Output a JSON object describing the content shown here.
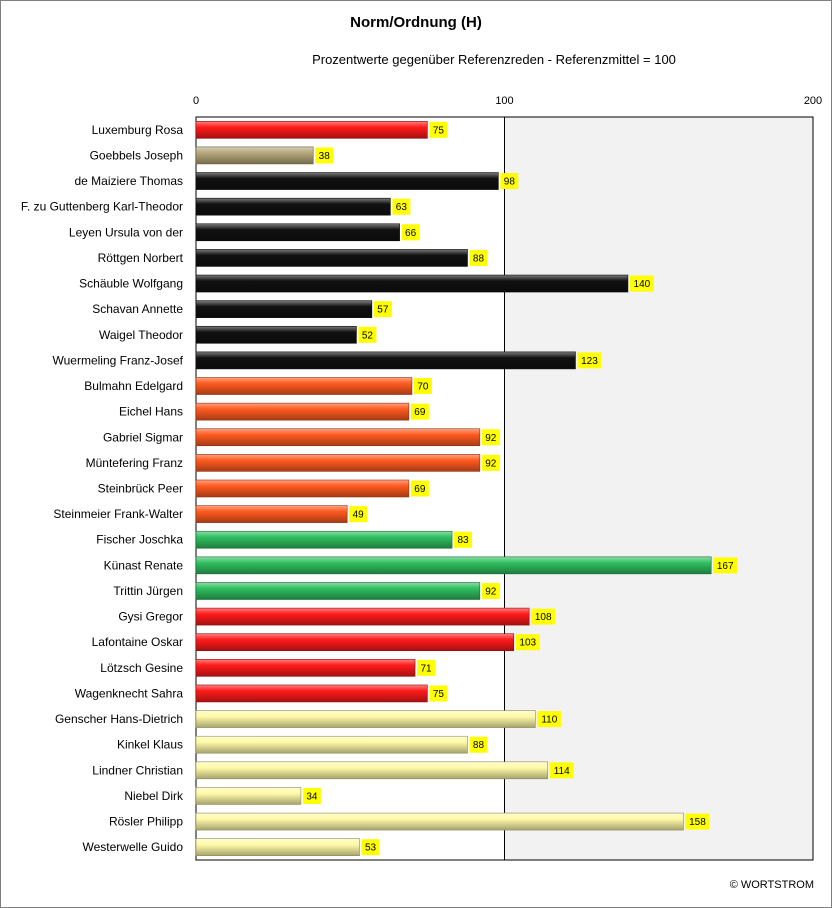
{
  "chart_data": {
    "type": "bar",
    "orientation": "horizontal",
    "title": "Norm/Ordnung (H)",
    "subtitle": "Prozentwerte  gegenüber Referenzreden - Referenzmittel = 100",
    "xlim": [
      0,
      200
    ],
    "xticks": [
      "0",
      "100",
      "200"
    ],
    "categories": [
      "Luxemburg Rosa",
      "Goebbels Joseph",
      "de Maiziere Thomas",
      "F. zu Guttenberg Karl-Theodor",
      "Leyen Ursula von der",
      "Röttgen Norbert",
      "Schäuble Wolfgang",
      "Schavan Annette",
      "Waigel Theodor",
      "Wuermeling Franz-Josef",
      "Bulmahn Edelgard",
      "Eichel Hans",
      "Gabriel Sigmar",
      "Müntefering Franz",
      "Steinbrück Peer",
      "Steinmeier Frank-Walter",
      "Fischer Joschka",
      "Künast Renate",
      "Trittin Jürgen",
      "Gysi Gregor",
      "Lafontaine Oskar",
      "Lötzsch Gesine",
      "Wagenknecht Sahra",
      "Genscher Hans-Dietrich",
      "Kinkel Klaus",
      "Lindner Christian",
      "Niebel Dirk",
      "Rösler Philipp",
      "Westerwelle Guido"
    ],
    "values": [
      75,
      38,
      98,
      63,
      66,
      88,
      140,
      57,
      52,
      123,
      70,
      69,
      92,
      92,
      69,
      49,
      83,
      167,
      92,
      108,
      103,
      71,
      75,
      110,
      88,
      114,
      34,
      158,
      53
    ],
    "data_labels": [
      "75",
      "38",
      "98",
      "63",
      "66",
      "88",
      "140",
      "57",
      "52",
      "123",
      "70",
      "69",
      "92",
      "92",
      "69",
      "49",
      "83",
      "167",
      "92",
      "108",
      "103",
      "71",
      "75",
      "110",
      "88",
      "114",
      "34",
      "158",
      "53"
    ],
    "bar_colors": [
      "#ff1a1a",
      "#b5a77a",
      "#111111",
      "#111111",
      "#111111",
      "#111111",
      "#111111",
      "#111111",
      "#111111",
      "#111111",
      "#ff5a1f",
      "#ff5a1f",
      "#ff5a1f",
      "#ff5a1f",
      "#ff5a1f",
      "#ff5a1f",
      "#2fbf5f",
      "#2fbf5f",
      "#2fbf5f",
      "#ff1a1a",
      "#ff1a1a",
      "#ff1a1a",
      "#ff1a1a",
      "#fffaa8",
      "#fffaa8",
      "#fffaa8",
      "#fffaa8",
      "#fffaa8",
      "#fffaa8"
    ],
    "label_background": "#ffff00",
    "plot_background_right_half": "#f2f2f2",
    "reference_line_value": 100
  },
  "footer": {
    "copyright": "© WORTSTROM"
  }
}
